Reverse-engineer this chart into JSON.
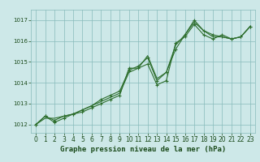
{
  "title": "Graphe pression niveau de la mer (hPa)",
  "background_color": "#cde8e8",
  "plot_bg_color": "#cde8e8",
  "grid_color": "#88bbbb",
  "line_color": "#2d6e2d",
  "marker_color": "#2d6e2d",
  "text_color": "#1a4a1a",
  "ylabel_fontsize": 6,
  "xlabel_fontsize": 6.5,
  "title_fontsize": 6.5,
  "xlim": [
    -0.5,
    23.5
  ],
  "ylim": [
    1011.6,
    1017.5
  ],
  "yticks": [
    1012,
    1013,
    1014,
    1015,
    1016,
    1017
  ],
  "xticks": [
    0,
    1,
    2,
    3,
    4,
    5,
    6,
    7,
    8,
    9,
    10,
    11,
    12,
    13,
    14,
    15,
    16,
    17,
    18,
    19,
    20,
    21,
    22,
    23
  ],
  "series": [
    [
      1012.0,
      1012.4,
      1012.1,
      1012.3,
      1012.5,
      1012.6,
      1012.8,
      1013.0,
      1013.2,
      1013.4,
      1014.7,
      1014.7,
      1014.9,
      1013.9,
      1014.1,
      1015.9,
      1016.2,
      1016.8,
      1016.3,
      1016.1,
      1016.3,
      1016.1,
      1016.2,
      1016.7
    ],
    [
      1012.0,
      1012.4,
      1012.2,
      1012.4,
      1012.5,
      1012.7,
      1012.9,
      1013.2,
      1013.4,
      1013.6,
      1014.6,
      1014.8,
      1015.2,
      1014.1,
      1014.5,
      1015.6,
      1016.3,
      1017.0,
      1016.5,
      1016.3,
      1016.2,
      1016.1,
      1016.2,
      1016.7
    ],
    [
      1012.0,
      1012.3,
      1012.3,
      1012.4,
      1012.5,
      1012.7,
      1012.9,
      1013.1,
      1013.3,
      1013.5,
      1014.5,
      1014.7,
      1015.3,
      1014.2,
      1014.5,
      1015.8,
      1016.3,
      1016.9,
      1016.5,
      1016.2,
      1016.2,
      1016.1,
      1016.2,
      1016.7
    ]
  ]
}
